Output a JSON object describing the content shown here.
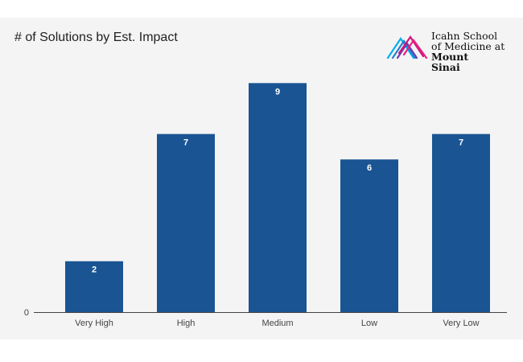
{
  "logo": {
    "name": "Icahn School of Medicine at Mount Sinai",
    "lines": [
      "Icahn School",
      "of Medicine at",
      "Mount",
      "Sinai"
    ]
  },
  "chart_data": {
    "type": "bar",
    "title": "# of Solutions by Est. Impact",
    "categories": [
      "Very High",
      "High",
      "Medium",
      "Low",
      "Very Low"
    ],
    "values": [
      2,
      7,
      9,
      6,
      7
    ],
    "xlabel": "",
    "ylabel": "",
    "ylim": [
      0,
      9.8
    ],
    "y_tick_labels": [
      "0"
    ],
    "data_labels": [
      "2",
      "7",
      "9",
      "6",
      "7"
    ],
    "bar_color": "#1a5493",
    "data_label_color": "#ffffff",
    "grid": false,
    "legend": "none"
  }
}
